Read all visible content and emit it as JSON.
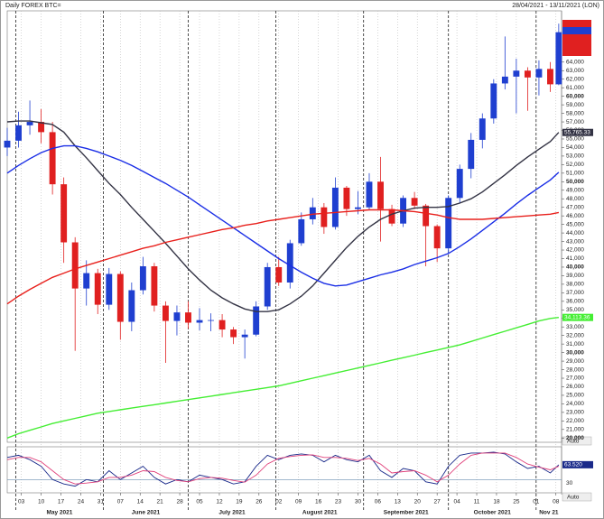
{
  "chart_data": {
    "type": "candlestick",
    "title": "Daily FOREX BTC=",
    "subtitle": "28/04/2021 - 13/11/2021 (LON)",
    "auto_label": "Auto",
    "up_color": "#1f3fd0",
    "down_color": "#e02020",
    "xlim": [
      "2021-04-28",
      "2021-11-10"
    ],
    "x": [
      "2021-04-28",
      "2021-05-02",
      "2021-05-06",
      "2021-05-10",
      "2021-05-14",
      "2021-05-18",
      "2021-05-22",
      "2021-05-26",
      "2021-05-30",
      "2021-06-03",
      "2021-06-07",
      "2021-06-11",
      "2021-06-15",
      "2021-06-19",
      "2021-06-23",
      "2021-06-27",
      "2021-07-01",
      "2021-07-05",
      "2021-07-09",
      "2021-07-13",
      "2021-07-17",
      "2021-07-21",
      "2021-07-25",
      "2021-07-29",
      "2021-08-02",
      "2021-08-06",
      "2021-08-10",
      "2021-08-14",
      "2021-08-18",
      "2021-08-22",
      "2021-08-26",
      "2021-08-30",
      "2021-09-03",
      "2021-09-07",
      "2021-09-11",
      "2021-09-15",
      "2021-09-19",
      "2021-09-23",
      "2021-09-27",
      "2021-10-01",
      "2021-10-05",
      "2021-10-09",
      "2021-10-13",
      "2021-10-17",
      "2021-10-21",
      "2021-10-25",
      "2021-10-29",
      "2021-11-02",
      "2021-11-06",
      "2021-11-09"
    ],
    "open": [
      54000,
      54800,
      56600,
      57000,
      55800,
      49700,
      42900,
      37500,
      39300,
      35600,
      39200,
      33600,
      37300,
      40100,
      35500,
      33700,
      34700,
      33500,
      33800,
      33800,
      32700,
      31800,
      32100,
      35400,
      40000,
      38200,
      42800,
      45600,
      47000,
      44700,
      49300,
      46800,
      47000,
      50000,
      46800,
      45100,
      48100,
      47200,
      44800,
      42200,
      48100,
      51500,
      54900,
      57400,
      61500,
      62300,
      63000,
      62200,
      63200,
      61400
    ],
    "high": [
      56300,
      58200,
      59500,
      58500,
      57000,
      50500,
      43500,
      40800,
      39800,
      39900,
      39500,
      38200,
      41200,
      40500,
      36000,
      35500,
      36000,
      35200,
      34600,
      34500,
      33000,
      32700,
      36000,
      40500,
      41200,
      43200,
      46400,
      48100,
      47500,
      50500,
      49500,
      48900,
      51000,
      52900,
      47300,
      48400,
      48800,
      47400,
      45000,
      48400,
      52000,
      55700,
      58000,
      62000,
      67000,
      64400,
      63400,
      64200,
      64000,
      68500
    ],
    "low": [
      53000,
      54000,
      55500,
      54500,
      48500,
      40500,
      30200,
      35500,
      34500,
      35000,
      31500,
      32500,
      36800,
      34800,
      28800,
      32000,
      32800,
      32600,
      32500,
      31800,
      31000,
      29300,
      31900,
      35000,
      37800,
      37500,
      42500,
      45000,
      43900,
      44400,
      46000,
      46200,
      46700,
      43000,
      44800,
      44700,
      46800,
      40100,
      40600,
      41600,
      47500,
      50400,
      53900,
      56800,
      60800,
      58000,
      58300,
      60100,
      60500,
      61300
    ],
    "close": [
      54800,
      56600,
      57000,
      55800,
      49700,
      42900,
      37500,
      39300,
      35600,
      39200,
      33600,
      37300,
      40100,
      35500,
      33700,
      34700,
      33500,
      33800,
      33800,
      32700,
      31800,
      32100,
      35400,
      40000,
      38200,
      42800,
      45600,
      47000,
      44700,
      49300,
      46800,
      47000,
      50000,
      46800,
      45100,
      48100,
      47200,
      44800,
      42200,
      48100,
      51500,
      54900,
      57400,
      61500,
      62300,
      63000,
      62200,
      63200,
      61400,
      67500
    ],
    "series": [
      {
        "color": "#333344",
        "last_label": "55,765.33",
        "values": [
          57000,
          57100,
          57100,
          56900,
          56700,
          55800,
          54200,
          52800,
          51300,
          49800,
          48500,
          47000,
          45600,
          44200,
          42800,
          41300,
          39800,
          38500,
          37300,
          36400,
          35700,
          35100,
          34800,
          34800,
          35000,
          35700,
          36600,
          37800,
          39300,
          40800,
          42300,
          43600,
          44700,
          45600,
          46200,
          46600,
          46900,
          47000,
          47000,
          47100,
          47500,
          48000,
          48800,
          49800,
          50800,
          51900,
          52900,
          53800,
          54700,
          55765.33
        ]
      },
      {
        "color": "#1a2ee6",
        "values": [
          51000,
          51900,
          52700,
          53400,
          53900,
          54200,
          54200,
          53900,
          53500,
          53000,
          52500,
          51900,
          51200,
          50500,
          49800,
          49000,
          48200,
          47300,
          46400,
          45500,
          44600,
          43700,
          42800,
          41900,
          41000,
          40200,
          39400,
          38700,
          38100,
          37800,
          37900,
          38300,
          38700,
          39100,
          39400,
          39800,
          40300,
          40700,
          41100,
          41600,
          42400,
          43300,
          44300,
          45300,
          46300,
          47400,
          48400,
          49300,
          50200,
          51100
        ]
      },
      {
        "color": "#e8201c",
        "values": [
          35700,
          36600,
          37400,
          38100,
          38800,
          39300,
          39800,
          40200,
          40600,
          41000,
          41400,
          41800,
          42200,
          42500,
          42900,
          43200,
          43500,
          43800,
          44100,
          44400,
          44600,
          44900,
          45100,
          45400,
          45600,
          45800,
          46000,
          46200,
          46300,
          46400,
          46500,
          46600,
          46700,
          46700,
          46700,
          46600,
          46500,
          46300,
          46100,
          45800,
          45600,
          45600,
          45600,
          45700,
          45800,
          45900,
          46000,
          46100,
          46200,
          46400
        ]
      },
      {
        "color": "#44ee33",
        "last_label": "34,113.36",
        "values": [
          20000,
          20500,
          20900,
          21300,
          21700,
          22000,
          22300,
          22600,
          22900,
          23100,
          23300,
          23500,
          23700,
          23900,
          24100,
          24300,
          24500,
          24700,
          24900,
          25100,
          25300,
          25500,
          25700,
          25900,
          26100,
          26400,
          26700,
          27000,
          27300,
          27600,
          27900,
          28200,
          28500,
          28800,
          29100,
          29400,
          29700,
          30000,
          30300,
          30600,
          30900,
          31300,
          31700,
          32100,
          32500,
          32900,
          33300,
          33700,
          34000,
          34113.36
        ]
      }
    ],
    "ylim": [
      19500,
      70000
    ],
    "yticks": [
      {
        "value": 20000,
        "label": "20,000"
      },
      {
        "value": 21000,
        "label": "21,000"
      },
      {
        "value": 22000,
        "label": "22,000"
      },
      {
        "value": 23000,
        "label": "23,000"
      },
      {
        "value": 24000,
        "label": "24,000"
      },
      {
        "value": 25000,
        "label": "25,000"
      },
      {
        "value": 26000,
        "label": "26,000"
      },
      {
        "value": 27000,
        "label": "27,000"
      },
      {
        "value": 28000,
        "label": "28,000"
      },
      {
        "value": 29000,
        "label": "29,000"
      },
      {
        "value": 30000,
        "label": "30,000"
      },
      {
        "value": 31000,
        "label": "31,000"
      },
      {
        "value": 32000,
        "label": "32,000"
      },
      {
        "value": 33000,
        "label": "33,000"
      },
      {
        "value": 34000,
        "label": "34,000"
      },
      {
        "value": 35000,
        "label": "35,000"
      },
      {
        "value": 36000,
        "label": "36,000"
      },
      {
        "value": 37000,
        "label": "37,000"
      },
      {
        "value": 38000,
        "label": "38,000"
      },
      {
        "value": 39000,
        "label": "39,000"
      },
      {
        "value": 40000,
        "label": "40,000"
      },
      {
        "value": 41000,
        "label": "41,000"
      },
      {
        "value": 42000,
        "label": "42,000"
      },
      {
        "value": 43000,
        "label": "43,000"
      },
      {
        "value": 44000,
        "label": "44,000"
      },
      {
        "value": 45000,
        "label": "45,000"
      },
      {
        "value": 46000,
        "label": "46,000"
      },
      {
        "value": 47000,
        "label": "47,000"
      },
      {
        "value": 48000,
        "label": "48,000"
      },
      {
        "value": 49000,
        "label": "49,000"
      },
      {
        "value": 50000,
        "label": "50,000"
      },
      {
        "value": 51000,
        "label": "51,000"
      },
      {
        "value": 52000,
        "label": "52,000"
      },
      {
        "value": 53000,
        "label": "53,000"
      },
      {
        "value": 54000,
        "label": "54,000"
      },
      {
        "value": 55000,
        "label": "55,000"
      },
      {
        "value": 56000,
        "label": "56,000"
      },
      {
        "value": 57000,
        "label": "57,000"
      },
      {
        "value": 58000,
        "label": "58,000"
      },
      {
        "value": 59000,
        "label": "59,000"
      },
      {
        "value": 60000,
        "label": "60,000"
      },
      {
        "value": 61000,
        "label": "61,000"
      },
      {
        "value": 62000,
        "label": "62,000"
      },
      {
        "value": 63000,
        "label": "63,000"
      },
      {
        "value": 64000,
        "label": "64,000"
      }
    ],
    "xticks": [
      {
        "value": "2021-05-03",
        "label": "03"
      },
      {
        "value": "2021-05-10",
        "label": "10"
      },
      {
        "value": "2021-05-17",
        "label": "17"
      },
      {
        "value": "2021-05-24",
        "label": "24"
      },
      {
        "value": "2021-05-31",
        "label": "31"
      },
      {
        "value": "2021-06-07",
        "label": "07"
      },
      {
        "value": "2021-06-14",
        "label": "14"
      },
      {
        "value": "2021-06-21",
        "label": "21"
      },
      {
        "value": "2021-06-28",
        "label": "28"
      },
      {
        "value": "2021-07-05",
        "label": "05"
      },
      {
        "value": "2021-07-12",
        "label": "12"
      },
      {
        "value": "2021-07-19",
        "label": "19"
      },
      {
        "value": "2021-07-26",
        "label": "26"
      },
      {
        "value": "2021-08-02",
        "label": "02"
      },
      {
        "value": "2021-08-09",
        "label": "09"
      },
      {
        "value": "2021-08-16",
        "label": "16"
      },
      {
        "value": "2021-08-23",
        "label": "23"
      },
      {
        "value": "2021-08-30",
        "label": "30"
      },
      {
        "value": "2021-09-06",
        "label": "06"
      },
      {
        "value": "2021-09-13",
        "label": "13"
      },
      {
        "value": "2021-09-20",
        "label": "20"
      },
      {
        "value": "2021-09-27",
        "label": "27"
      },
      {
        "value": "2021-10-04",
        "label": "04"
      },
      {
        "value": "2021-10-11",
        "label": "11"
      },
      {
        "value": "2021-10-18",
        "label": "18"
      },
      {
        "value": "2021-10-25",
        "label": "25"
      },
      {
        "value": "2021-11-01",
        "label": "01"
      },
      {
        "value": "2021-11-08",
        "label": "08"
      }
    ],
    "months": [
      "May 2021",
      "June 2021",
      "July 2021",
      "August 2021",
      "September 2021",
      "October 2021",
      "Nov 21"
    ],
    "oscillator": {
      "ylim": [
        0,
        100
      ],
      "yticks": [
        30
      ],
      "series": [
        {
          "color": "#1a2a8a",
          "last_label": "63.520",
          "values": [
            80,
            85,
            75,
            60,
            30,
            20,
            15,
            30,
            25,
            50,
            30,
            45,
            60,
            35,
            20,
            30,
            25,
            40,
            35,
            30,
            20,
            25,
            60,
            85,
            75,
            85,
            88,
            85,
            70,
            85,
            75,
            70,
            85,
            50,
            35,
            55,
            50,
            25,
            20,
            60,
            85,
            90,
            90,
            92,
            88,
            70,
            55,
            60,
            45,
            63.52
          ]
        },
        {
          "color": "#e0407a",
          "values": [
            75,
            80,
            80,
            70,
            50,
            30,
            20,
            22,
            25,
            35,
            35,
            40,
            50,
            48,
            35,
            28,
            25,
            32,
            35,
            33,
            28,
            24,
            40,
            65,
            78,
            82,
            85,
            86,
            80,
            80,
            78,
            73,
            78,
            65,
            45,
            48,
            50,
            40,
            25,
            40,
            65,
            85,
            90,
            90,
            90,
            80,
            65,
            58,
            52,
            60
          ]
        }
      ]
    }
  }
}
